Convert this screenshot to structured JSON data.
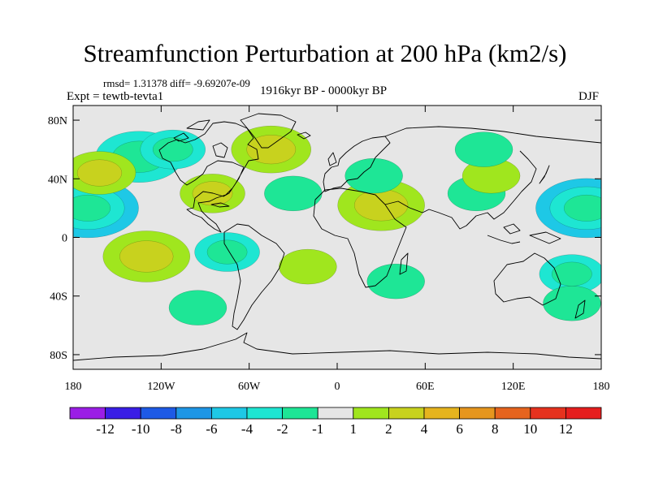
{
  "title": "Streamfunction Perturbation at 200 hPa (km2/s)",
  "stats_line": "rmsd= 1.31378 diff= -9.69207e-09",
  "experiment": "Expt = tewtb-tevta1",
  "period": "1916kyr BP - 0000kyr BP",
  "season": "DJF",
  "axes": {
    "lat_labels": [
      "80N",
      "40N",
      "0",
      "40S",
      "80S"
    ],
    "lat_values": [
      80,
      40,
      0,
      -40,
      -80
    ],
    "lon_labels": [
      "180",
      "120W",
      "60W",
      "0",
      "60E",
      "120E",
      "180"
    ],
    "lon_values": [
      -180,
      -120,
      -60,
      0,
      60,
      120,
      180
    ],
    "lat_range": [
      -90,
      90
    ],
    "lon_range": [
      -180,
      180
    ]
  },
  "colorbar": {
    "labels": [
      "-12",
      "-10",
      "-8",
      "-6",
      "-4",
      "-2",
      "-1",
      "1",
      "2",
      "4",
      "6",
      "8",
      "10",
      "12"
    ],
    "colors": [
      "#9b1ee6",
      "#3a1ee6",
      "#1e5ae6",
      "#1e96e6",
      "#1ec8e6",
      "#1ee6d2",
      "#1ee696",
      "#e6e6e6",
      "#a0e61e",
      "#c8d21e",
      "#e6b41e",
      "#e6961e",
      "#e6641e",
      "#e6321e",
      "#e61e1e"
    ]
  },
  "chart_data": {
    "type": "heatmap",
    "title": "Streamfunction Perturbation at 200 hPa (km2/s)",
    "units": "km2/s",
    "level": "200 hPa",
    "experiment": "tewtb-tevta1",
    "season": "DJF",
    "rmsd": 1.31378,
    "diff": -9.69207e-09,
    "contour_levels": [
      -12,
      -10,
      -8,
      -6,
      -4,
      -2,
      -1,
      1,
      2,
      4,
      6,
      8,
      10,
      12
    ],
    "anomalies": [
      {
        "lon": -170,
        "lat": 20,
        "value": -4.5
      },
      {
        "lon": 170,
        "lat": 20,
        "value": -4.5
      },
      {
        "lon": -135,
        "lat": 55,
        "value": -3.5
      },
      {
        "lon": -162,
        "lat": 44,
        "value": 2.5
      },
      {
        "lon": -112,
        "lat": 60,
        "value": -2
      },
      {
        "lon": -45,
        "lat": 60,
        "value": 3
      },
      {
        "lon": -85,
        "lat": 30,
        "value": 2
      },
      {
        "lon": -30,
        "lat": 30,
        "value": -1.5
      },
      {
        "lon": 30,
        "lat": 22,
        "value": 3.5
      },
      {
        "lon": 25,
        "lat": 42,
        "value": -1.5
      },
      {
        "lon": 95,
        "lat": 30,
        "value": -1.5
      },
      {
        "lon": 105,
        "lat": 42,
        "value": 1.5
      },
      {
        "lon": -130,
        "lat": -13,
        "value": 3.5
      },
      {
        "lon": -75,
        "lat": -10,
        "value": -2
      },
      {
        "lon": -20,
        "lat": -20,
        "value": 1.5
      },
      {
        "lon": 40,
        "lat": -30,
        "value": -1.5
      },
      {
        "lon": -95,
        "lat": -48,
        "value": -1.5
      },
      {
        "lon": 160,
        "lat": -25,
        "value": -2
      },
      {
        "lon": 160,
        "lat": -45,
        "value": -1.5
      },
      {
        "lon": 100,
        "lat": 60,
        "value": -1.5
      }
    ]
  }
}
